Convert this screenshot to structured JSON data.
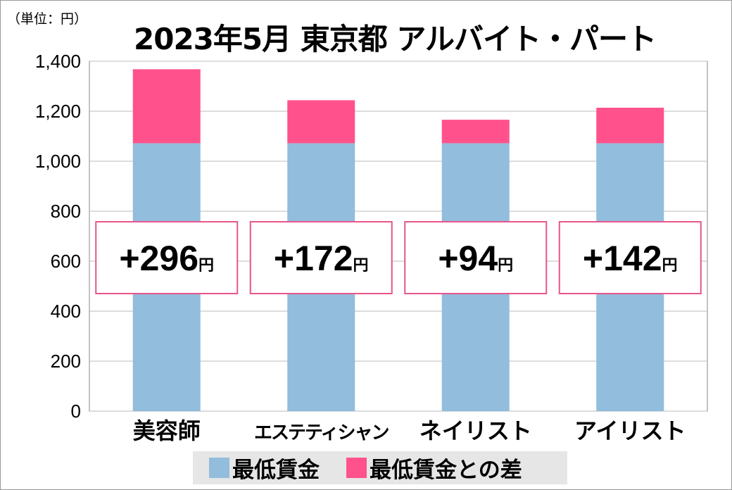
{
  "chart_data": {
    "type": "bar",
    "stacked": true,
    "title": "2023年5月 東京都 アルバイト・パート",
    "unit_label": "（単位：円）",
    "categories": [
      "美容師",
      "エステティシャン",
      "ネイリスト",
      "アイリスト"
    ],
    "series": [
      {
        "name": "最低賃金",
        "values": [
          1072,
          1072,
          1072,
          1072
        ],
        "color": "#92bddc"
      },
      {
        "name": "最低賃金との差",
        "values": [
          296,
          172,
          94,
          142
        ],
        "color": "#ff528c"
      }
    ],
    "annotations": [
      "+296",
      "+172",
      "+94",
      "+142"
    ],
    "annotation_unit": "円",
    "ylim": [
      0,
      1400
    ],
    "yticks": [
      0,
      200,
      400,
      600,
      800,
      1000,
      1200,
      1400
    ],
    "ytick_labels": [
      "0",
      "200",
      "400",
      "600",
      "800",
      "1,000",
      "1,200",
      "1,400"
    ],
    "grid": true,
    "legend_position": "bottom"
  }
}
